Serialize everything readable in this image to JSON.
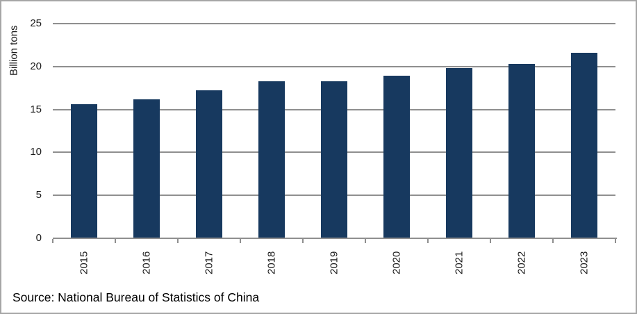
{
  "chart_data": {
    "type": "bar",
    "title": "",
    "ylabel": "Billion tons",
    "xlabel": "",
    "categories": [
      "2015",
      "2016",
      "2017",
      "2018",
      "2019",
      "2020",
      "2021",
      "2022",
      "2023"
    ],
    "values": [
      15.6,
      16.2,
      17.2,
      18.3,
      18.3,
      18.9,
      19.8,
      20.3,
      21.6
    ],
    "ylim": [
      0,
      25
    ],
    "yticks": [
      0,
      5,
      10,
      15,
      20,
      25
    ],
    "grid": true,
    "legend_position": "none",
    "bar_color": "#17395f",
    "gridline_color": "#8f8f8f",
    "source": "Source: National Bureau of Statistics of China"
  }
}
